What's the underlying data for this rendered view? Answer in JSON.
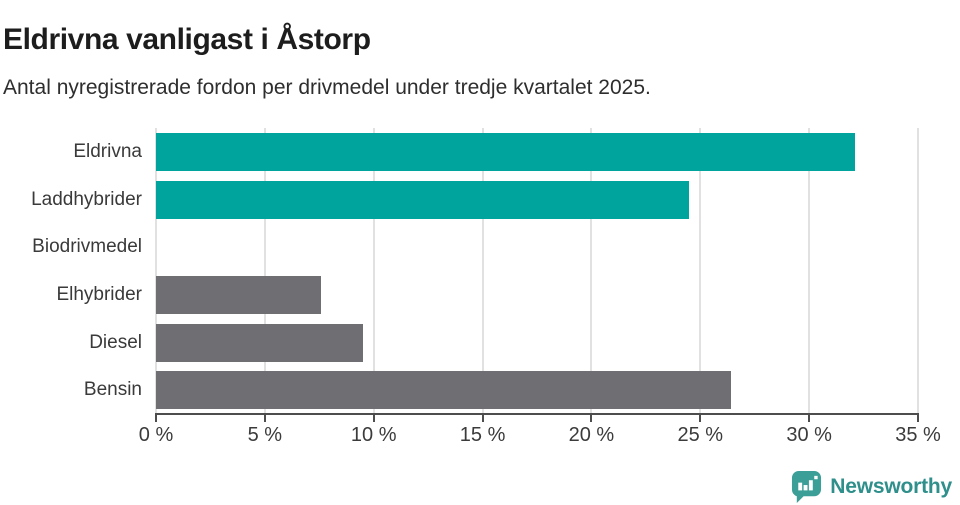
{
  "title": "Eldrivna vanligast i Åstorp",
  "subtitle": "Antal nyregistrerade fordon per drivmedel under tredje kvartalet 2025.",
  "chart_data": {
    "type": "bar",
    "orientation": "horizontal",
    "title": "Eldrivna vanligast i Åstorp",
    "subtitle": "Antal nyregistrerade fordon per drivmedel under tredje kvartalet 2025.",
    "categories": [
      "Eldrivna",
      "Laddhybrider",
      "Biodrivmedel",
      "Elhybrider",
      "Diesel",
      "Bensin"
    ],
    "values": [
      32.1,
      24.5,
      0,
      7.6,
      9.5,
      26.4
    ],
    "unit": "%",
    "xlabel": "",
    "ylabel": "",
    "xlim": [
      0,
      35
    ],
    "xticks": [
      0,
      5,
      10,
      15,
      20,
      25,
      30,
      35
    ],
    "xtick_labels": [
      "0 %",
      "5 %",
      "10 %",
      "15 %",
      "20 %",
      "25 %",
      "30 %",
      "35 %"
    ],
    "grid": true,
    "legend": false,
    "bar_colors": [
      "#00A49C",
      "#00A49C",
      "#6E6E73",
      "#6E6E73",
      "#6E6E73",
      "#6E6E73"
    ]
  },
  "colors": {
    "highlight": "#00A49C",
    "default_bar": "#6E6E73",
    "gridline": "#E1E1E1",
    "axis": "#4D4D4D",
    "title_text": "#1D1D1D",
    "brand": "#2E8F8B"
  },
  "branding": {
    "logo_text": "Newsworthy",
    "logo_icon": "bar-chart-speech-bubble-icon"
  }
}
